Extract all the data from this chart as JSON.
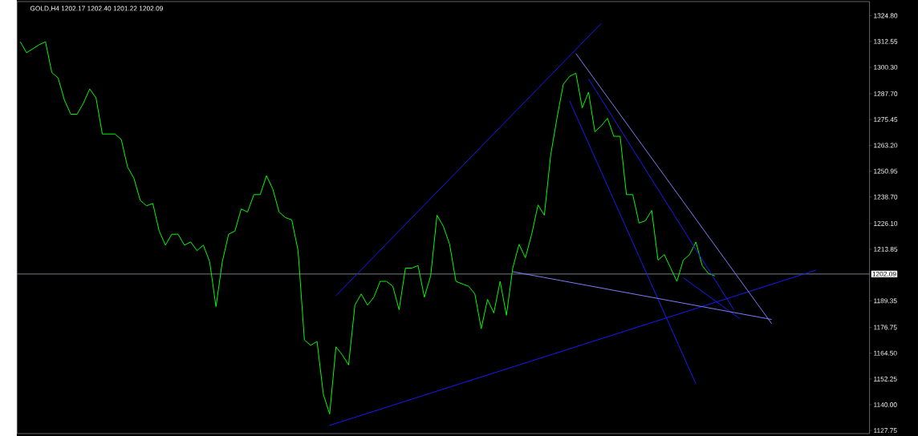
{
  "chart_data": {
    "type": "line",
    "title": "GOLD,H4  1202.17 1202.40 1201.22 1202.09",
    "categories": [
      null,
      null,
      null,
      null,
      null,
      null,
      null,
      null,
      null,
      null,
      null,
      null,
      null,
      null,
      null,
      null,
      null,
      null,
      null,
      null,
      null,
      null,
      null,
      null,
      null,
      null,
      null,
      null,
      null,
      null,
      null,
      null,
      null,
      null,
      null,
      null,
      null,
      null,
      null,
      null,
      null,
      null,
      null,
      null,
      null,
      null,
      null,
      null,
      null,
      null,
      null,
      null,
      null,
      null,
      null,
      null,
      null,
      null,
      null,
      null,
      null,
      null,
      null,
      null,
      null,
      null,
      null,
      null,
      null,
      null,
      null,
      null,
      null,
      null,
      null,
      null,
      null,
      null,
      null,
      null,
      null,
      null,
      null,
      null,
      null,
      null,
      null,
      null,
      null,
      null,
      null,
      null,
      null,
      null,
      null,
      null,
      null,
      null,
      null,
      null,
      null,
      null,
      null,
      null,
      null,
      null,
      null,
      null,
      null,
      null,
      null,
      null,
      null,
      null,
      null,
      null,
      null,
      null,
      null,
      null,
      null,
      null,
      null,
      null,
      null,
      null,
      null,
      null,
      null,
      null,
      null,
      null,
      null,
      null,
      null
    ],
    "series": [
      {
        "color": "#00ff00",
        "values": [
          1312.4,
          1307.2,
          1309.1,
          1311.0,
          1312.4,
          1297.8,
          1295.2,
          1284.7,
          1278.0,
          1278.0,
          1283.2,
          1290.0,
          1285.8,
          1268.6,
          1268.6,
          1268.6,
          1266.0,
          1252.9,
          1247.6,
          1237.1,
          1234.5,
          1235.6,
          1222.5,
          1215.8,
          1221.0,
          1221.0,
          1215.8,
          1217.3,
          1213.2,
          1215.8,
          1207.9,
          1186.6,
          1207.9,
          1221.0,
          1222.5,
          1233.0,
          1231.5,
          1239.8,
          1239.8,
          1248.8,
          1242.4,
          1231.5,
          1228.9,
          1227.8,
          1213.2,
          1170.8,
          1168.2,
          1170.1,
          1145.0,
          1135.6,
          1167.5,
          1163.7,
          1158.9,
          1187.3,
          1192.6,
          1187.3,
          1191.1,
          1198.6,
          1198.6,
          1196.3,
          1185.1,
          1204.9,
          1204.9,
          1206.1,
          1191.1,
          1201.2,
          1230.0,
          1224.8,
          1216.2,
          1198.6,
          1197.4,
          1196.3,
          1192.6,
          1176.1,
          1190.0,
          1183.6,
          1198.6,
          1182.5,
          1204.9,
          1216.2,
          1209.8,
          1221.0,
          1234.9,
          1230.0,
          1258.5,
          1276.1,
          1292.2,
          1296.0,
          1297.5,
          1281.0,
          1288.5,
          1269.7,
          1272.4,
          1276.1,
          1267.5,
          1267.5,
          1239.8,
          1239.8,
          1226.3,
          1227.4,
          1232.3,
          1208.7,
          1211.3,
          1204.9,
          1198.6,
          1208.7,
          1211.3,
          1217.3,
          1206.1,
          1202.3,
          1201.2,
          null,
          null,
          null,
          null,
          null,
          null,
          null,
          null,
          null,
          null,
          null,
          null,
          null,
          null,
          null,
          null,
          null,
          null,
          null,
          null,
          null,
          null,
          null,
          null
        ]
      },
      {
        "type": "line",
        "color": "#1a1aff",
        "values": [
          null,
          null,
          null,
          null,
          null,
          null,
          null,
          null,
          null,
          null,
          null,
          null,
          null,
          null,
          null,
          null,
          null,
          null,
          null,
          null,
          null,
          null,
          null,
          null,
          null,
          null,
          null,
          null,
          null,
          null,
          null,
          null,
          null,
          null,
          null,
          null,
          null,
          null,
          null,
          null,
          null,
          null,
          null,
          null,
          null,
          null,
          null,
          null,
          null,
          null,
          1191.8,
          null,
          null,
          null,
          null,
          null,
          null,
          null,
          null,
          null,
          null,
          null,
          null,
          null,
          null,
          null,
          null,
          null,
          null,
          null,
          null,
          null,
          null,
          null,
          null,
          null,
          null,
          null,
          null,
          null,
          null,
          null,
          null,
          null,
          null,
          null,
          null,
          null,
          null,
          null,
          null,
          null,
          1321.1,
          null,
          null,
          null,
          null,
          null,
          null,
          null,
          null,
          null,
          null,
          null,
          null,
          null,
          null,
          null,
          null,
          null,
          null,
          null,
          null,
          null,
          null,
          null,
          null,
          null,
          null,
          null,
          null,
          null,
          null,
          null,
          null,
          null,
          null,
          null,
          null,
          null,
          null,
          null,
          null,
          null,
          null
        ]
      },
      {
        "type": "line",
        "color": "#1a1aff",
        "values": [
          null,
          null,
          null,
          null,
          null,
          null,
          null,
          null,
          null,
          null,
          null,
          null,
          null,
          null,
          null,
          null,
          null,
          null,
          null,
          null,
          null,
          null,
          null,
          null,
          null,
          null,
          null,
          null,
          null,
          null,
          null,
          null,
          null,
          null,
          null,
          null,
          null,
          null,
          null,
          null,
          null,
          null,
          null,
          null,
          null,
          null,
          null,
          null,
          null,
          1130.2,
          null,
          null,
          null,
          null,
          null,
          null,
          null,
          null,
          null,
          null,
          null,
          null,
          null,
          null,
          null,
          null,
          null,
          null,
          null,
          null,
          null,
          null,
          null,
          null,
          null,
          null,
          null,
          null,
          null,
          null,
          null,
          null,
          null,
          null,
          null,
          null,
          null,
          null,
          null,
          null,
          null,
          null,
          null,
          null,
          null,
          null,
          null,
          null,
          null,
          null,
          null,
          null,
          null,
          null,
          null,
          null,
          null,
          null,
          null,
          null,
          null,
          null,
          null,
          null,
          null,
          null,
          null,
          null,
          null,
          null,
          null,
          null,
          null,
          null,
          null,
          null,
          1203.9,
          null,
          null,
          null,
          null,
          null,
          null,
          null,
          null
        ]
      },
      {
        "type": "line",
        "color": "#1a1aff",
        "values": [
          null,
          null,
          null,
          null,
          null,
          null,
          null,
          null,
          null,
          null,
          null,
          null,
          null,
          null,
          null,
          null,
          null,
          null,
          null,
          null,
          null,
          null,
          null,
          null,
          null,
          null,
          null,
          null,
          null,
          null,
          null,
          null,
          null,
          null,
          null,
          null,
          null,
          null,
          null,
          null,
          null,
          null,
          null,
          null,
          null,
          null,
          null,
          null,
          null,
          null,
          null,
          null,
          null,
          null,
          null,
          null,
          null,
          null,
          null,
          null,
          null,
          null,
          null,
          null,
          null,
          null,
          null,
          null,
          null,
          null,
          null,
          null,
          null,
          null,
          null,
          null,
          null,
          null,
          null,
          null,
          null,
          null,
          null,
          null,
          null,
          null,
          null,
          1284.3,
          null,
          null,
          null,
          null,
          null,
          null,
          null,
          null,
          null,
          null,
          null,
          null,
          null,
          null,
          null,
          null,
          null,
          null,
          null,
          1149.9,
          null,
          null,
          null,
          null,
          null,
          null,
          null,
          null,
          null,
          null,
          null,
          null,
          null,
          null,
          null,
          null,
          null,
          null,
          null,
          null,
          null,
          null,
          null,
          null,
          null,
          null,
          null
        ]
      },
      {
        "type": "line",
        "color": "#1a1aff",
        "values": [
          null,
          null,
          null,
          null,
          null,
          null,
          null,
          null,
          null,
          null,
          null,
          null,
          null,
          null,
          null,
          null,
          null,
          null,
          null,
          null,
          null,
          null,
          null,
          null,
          null,
          null,
          null,
          null,
          null,
          null,
          null,
          null,
          null,
          null,
          null,
          null,
          null,
          null,
          null,
          null,
          null,
          null,
          null,
          null,
          null,
          null,
          null,
          null,
          null,
          null,
          null,
          null,
          null,
          null,
          null,
          null,
          null,
          null,
          null,
          null,
          null,
          null,
          null,
          null,
          null,
          null,
          null,
          null,
          null,
          null,
          null,
          null,
          null,
          null,
          null,
          null,
          null,
          null,
          null,
          null,
          null,
          null,
          null,
          null,
          null,
          null,
          null,
          null,
          null,
          null,
          1294.8,
          null,
          null,
          null,
          null,
          null,
          null,
          null,
          null,
          null,
          null,
          null,
          null,
          null,
          null,
          null,
          null,
          null,
          null,
          null,
          null,
          null,
          null,
          1185.1,
          null,
          null,
          null,
          null,
          null,
          null,
          null,
          null,
          null,
          null,
          null,
          null,
          null,
          null,
          null,
          null,
          null,
          null,
          null,
          null,
          null
        ]
      },
      {
        "type": "line",
        "color": "#1a1aff",
        "values": [
          null,
          null,
          null,
          null,
          null,
          null,
          null,
          null,
          null,
          null,
          null,
          null,
          null,
          null,
          null,
          null,
          null,
          null,
          null,
          null,
          null,
          null,
          null,
          null,
          null,
          null,
          null,
          null,
          null,
          null,
          null,
          null,
          null,
          null,
          null,
          null,
          null,
          null,
          null,
          null,
          null,
          null,
          null,
          null,
          null,
          null,
          null,
          null,
          null,
          null,
          null,
          null,
          null,
          null,
          null,
          null,
          null,
          null,
          null,
          null,
          null,
          null,
          null,
          null,
          null,
          null,
          null,
          null,
          null,
          null,
          null,
          null,
          null,
          null,
          null,
          null,
          null,
          null,
          null,
          null,
          null,
          null,
          null,
          null,
          null,
          null,
          null,
          null,
          null,
          null,
          null,
          null,
          null,
          null,
          null,
          null,
          null,
          null,
          null,
          null,
          null,
          null,
          null,
          null,
          null,
          1200.3,
          null,
          null,
          null,
          null,
          null,
          null,
          null,
          null,
          1180.8,
          null,
          null,
          null,
          null,
          null,
          null,
          null,
          null,
          null,
          null,
          null,
          null,
          null,
          null,
          null,
          null,
          null,
          null,
          null,
          null
        ]
      },
      {
        "type": "line",
        "color": "#8080ff",
        "values": [
          null,
          null,
          null,
          null,
          null,
          null,
          null,
          null,
          null,
          null,
          null,
          null,
          null,
          null,
          null,
          null,
          null,
          null,
          null,
          null,
          null,
          null,
          null,
          null,
          null,
          null,
          null,
          null,
          null,
          null,
          null,
          null,
          null,
          null,
          null,
          null,
          null,
          null,
          null,
          null,
          null,
          null,
          null,
          null,
          null,
          null,
          null,
          null,
          null,
          null,
          null,
          null,
          null,
          null,
          null,
          null,
          null,
          null,
          null,
          null,
          null,
          null,
          null,
          null,
          null,
          null,
          null,
          null,
          null,
          null,
          null,
          null,
          null,
          null,
          null,
          null,
          null,
          null,
          null,
          null,
          null,
          null,
          null,
          null,
          null,
          null,
          null,
          null,
          1306.8,
          null,
          null,
          null,
          null,
          null,
          null,
          null,
          null,
          null,
          null,
          null,
          null,
          null,
          null,
          null,
          null,
          null,
          null,
          null,
          null,
          null,
          null,
          null,
          null,
          null,
          null,
          null,
          null,
          null,
          null,
          1178.5,
          null,
          null,
          null,
          null,
          null,
          null,
          null,
          null,
          null,
          null,
          null,
          null,
          null,
          null,
          null
        ]
      },
      {
        "type": "line",
        "color": "#8080ff",
        "values": [
          null,
          null,
          null,
          null,
          null,
          null,
          null,
          null,
          null,
          null,
          null,
          null,
          null,
          null,
          null,
          null,
          null,
          null,
          null,
          null,
          null,
          null,
          null,
          null,
          null,
          null,
          null,
          null,
          null,
          null,
          null,
          null,
          null,
          null,
          null,
          null,
          null,
          null,
          null,
          null,
          null,
          null,
          null,
          null,
          null,
          null,
          null,
          null,
          null,
          null,
          null,
          null,
          null,
          null,
          null,
          null,
          null,
          null,
          null,
          null,
          null,
          null,
          null,
          null,
          null,
          null,
          null,
          null,
          null,
          null,
          null,
          null,
          null,
          null,
          null,
          null,
          null,
          null,
          1203.2,
          null,
          null,
          null,
          null,
          null,
          null,
          null,
          null,
          null,
          null,
          null,
          null,
          null,
          null,
          null,
          null,
          null,
          null,
          null,
          null,
          null,
          null,
          null,
          null,
          null,
          null,
          null,
          null,
          null,
          null,
          null,
          null,
          null,
          null,
          null,
          null,
          null,
          null,
          null,
          null,
          1180.5,
          null,
          null,
          null,
          null,
          null,
          null,
          null,
          null,
          null,
          null,
          null,
          null,
          null,
          null,
          null
        ]
      }
    ],
    "ylim": [
      1126.3,
      1331.5
    ],
    "yticks": [
      {
        "value": 1127.75,
        "label": "1127.75"
      },
      {
        "value": 1140,
        "label": "1140.00"
      },
      1152.25,
      {
        "value": 1164.5,
        "label": "1164.50"
      },
      1176.75,
      1189.35,
      1213.85,
      {
        "value": 1226.1,
        "label": "1226.10"
      },
      {
        "value": 1238.7,
        "label": "1238.70"
      },
      1250.95,
      {
        "value": 1263.2,
        "label": "1263.20"
      },
      1275.45,
      {
        "value": 1287.7,
        "label": "1287.70"
      },
      {
        "value": 1300.3,
        "label": "1300.30"
      },
      1312.55,
      {
        "value": 1324.8,
        "label": "1324.80"
      }
    ],
    "ref_lines": [
      {
        "axis": "y",
        "value": 1202.09,
        "label": "1202.09",
        "color": "#8fa0b0"
      }
    ],
    "tick_labels": "y",
    "marker": "none"
  }
}
